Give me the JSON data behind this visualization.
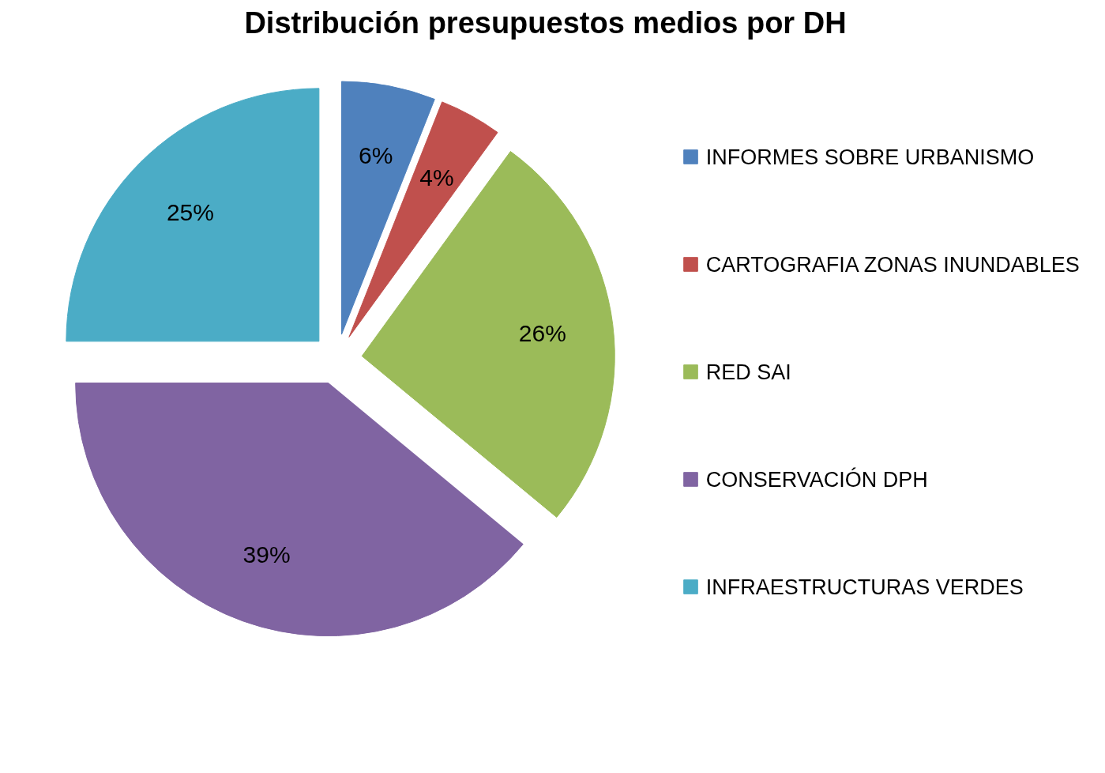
{
  "chart_data": {
    "type": "pie",
    "title": "Distribución presupuestos medios por DH",
    "categories": [
      "INFORMES SOBRE URBANISMO",
      "CARTOGRAFIA  ZONAS INUNDABLES",
      "RED SAI",
      "CONSERVACIÓN  DPH",
      "INFRAESTRUCTURAS VERDES"
    ],
    "values": [
      6,
      4,
      26,
      39,
      25
    ],
    "colors": [
      "#4f81bd",
      "#c0504d",
      "#9bbb59",
      "#8064a2",
      "#4bacc6"
    ],
    "value_labels": [
      "6%",
      "4%",
      "26%",
      "39%",
      "25%"
    ],
    "legend": "right"
  }
}
